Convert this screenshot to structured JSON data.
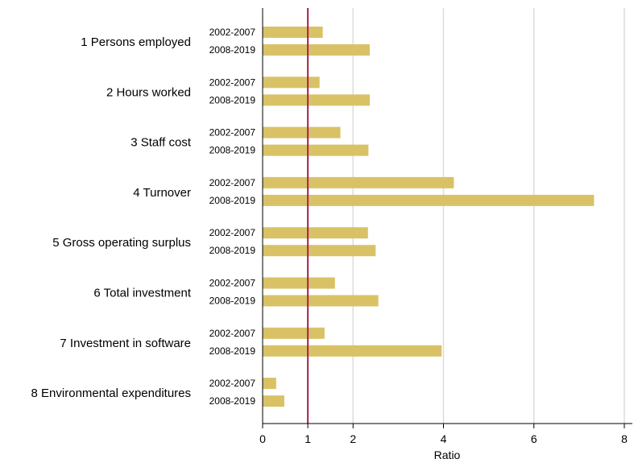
{
  "chart_data": {
    "type": "bar",
    "orientation": "horizontal",
    "title": "",
    "xlabel": "Ratio",
    "ylabel": "",
    "xlim": [
      0,
      8
    ],
    "xticks": [
      0,
      1,
      2,
      4,
      6,
      8
    ],
    "xtick_labels": [
      "0",
      "1",
      "2",
      "4",
      "6",
      "8"
    ],
    "grid": "vertical",
    "reference_line": {
      "x": 1,
      "color": "#a5224e"
    },
    "bar_color": "#d9c266",
    "categories": [
      "1 Persons employed",
      "2 Hours worked",
      "3 Staff cost",
      "4 Turnover",
      "5 Gross operating surplus",
      "6 Total investment",
      "7 Investment in software",
      "8 Environmental expenditures"
    ],
    "series": [
      {
        "name": "2002-2007",
        "values": [
          1.33,
          1.26,
          1.72,
          4.23,
          2.33,
          1.6,
          1.37,
          0.3
        ]
      },
      {
        "name": "2008-2019",
        "values": [
          2.37,
          2.37,
          2.34,
          7.33,
          2.5,
          2.56,
          3.96,
          0.48
        ]
      }
    ]
  }
}
